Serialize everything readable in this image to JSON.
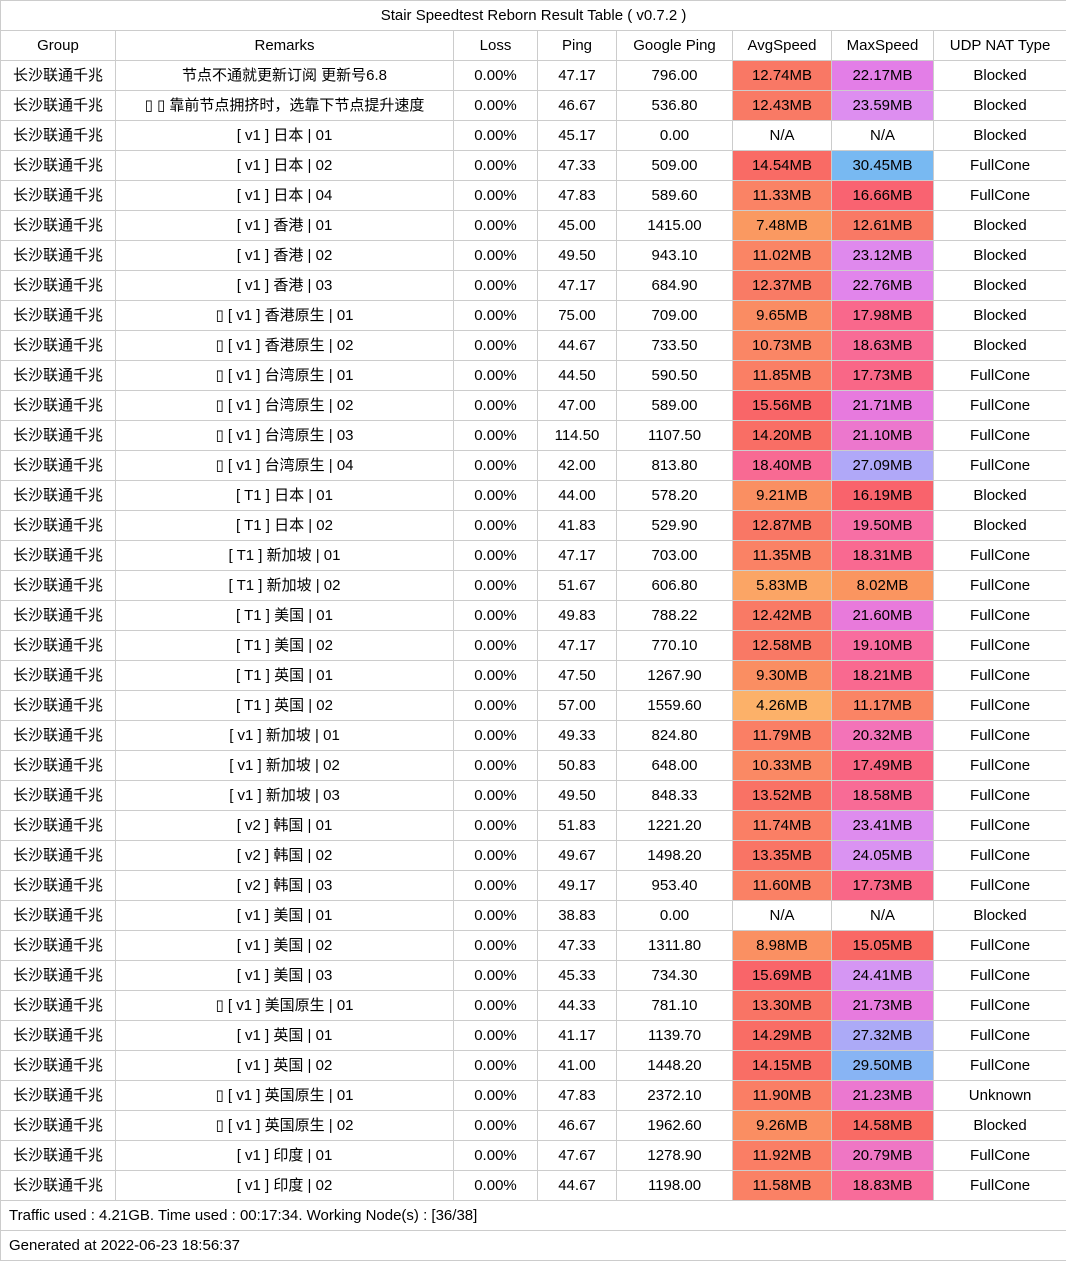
{
  "title": "Stair Speedtest Reborn Result Table ( v0.7.2 )",
  "columns": [
    "Group",
    "Remarks",
    "Loss",
    "Ping",
    "Google Ping",
    "AvgSpeed",
    "MaxSpeed",
    "UDP NAT Type"
  ],
  "column_keys": [
    "group",
    "remarks",
    "loss",
    "ping",
    "google_ping",
    "avg_speed",
    "max_speed",
    "udp_nat_type"
  ],
  "footer": {
    "summary": "Traffic used : 4.21GB. Time used : 00:17:34. Working Node(s) : [36/38]",
    "generated": "Generated at 2022-06-23 18:56:37"
  },
  "colors": {
    "border": "#cccccc",
    "text": "#000000",
    "background": "#ffffff",
    "na_cell": "#ffffff",
    "speed_scale": [
      {
        "mb": 4.0,
        "color": "#FCB36A"
      },
      {
        "mb": 8.0,
        "color": "#FA9560"
      },
      {
        "mb": 11.0,
        "color": "#FA8565"
      },
      {
        "mb": 13.0,
        "color": "#F97665"
      },
      {
        "mb": 15.0,
        "color": "#F96865"
      },
      {
        "mb": 16.5,
        "color": "#F9626E"
      },
      {
        "mb": 18.0,
        "color": "#F9688C"
      },
      {
        "mb": 19.5,
        "color": "#F76FA5"
      },
      {
        "mb": 20.5,
        "color": "#F274BC"
      },
      {
        "mb": 22.0,
        "color": "#E47CE6"
      },
      {
        "mb": 24.0,
        "color": "#DB93F2"
      },
      {
        "mb": 27.0,
        "color": "#B1A8F8"
      },
      {
        "mb": 30.5,
        "color": "#77B9F2"
      }
    ]
  },
  "rows": [
    {
      "group": "长沙联通千兆",
      "remarks": "节点不通就更新订阅 更新号6.8",
      "loss": "0.00%",
      "ping": "47.17",
      "google_ping": "796.00",
      "avg_speed": "12.74MB",
      "max_speed": "22.17MB",
      "udp_nat_type": "Blocked",
      "avg_mb": 12.74,
      "max_mb": 22.17
    },
    {
      "group": "长沙联通千兆",
      "remarks": "▯ ▯ 靠前节点拥挤时，选靠下节点提升速度",
      "loss": "0.00%",
      "ping": "46.67",
      "google_ping": "536.80",
      "avg_speed": "12.43MB",
      "max_speed": "23.59MB",
      "udp_nat_type": "Blocked",
      "avg_mb": 12.43,
      "max_mb": 23.59
    },
    {
      "group": "长沙联通千兆",
      "remarks": "[ v1 ] 日本 | 01",
      "loss": "0.00%",
      "ping": "45.17",
      "google_ping": "0.00",
      "avg_speed": "N/A",
      "max_speed": "N/A",
      "udp_nat_type": "Blocked",
      "avg_mb": null,
      "max_mb": null
    },
    {
      "group": "长沙联通千兆",
      "remarks": "[ v1 ] 日本 | 02",
      "loss": "0.00%",
      "ping": "47.33",
      "google_ping": "509.00",
      "avg_speed": "14.54MB",
      "max_speed": "30.45MB",
      "udp_nat_type": "FullCone",
      "avg_mb": 14.54,
      "max_mb": 30.45
    },
    {
      "group": "长沙联通千兆",
      "remarks": "[ v1 ] 日本 | 04",
      "loss": "0.00%",
      "ping": "47.83",
      "google_ping": "589.60",
      "avg_speed": "11.33MB",
      "max_speed": "16.66MB",
      "udp_nat_type": "FullCone",
      "avg_mb": 11.33,
      "max_mb": 16.66
    },
    {
      "group": "长沙联通千兆",
      "remarks": "[ v1 ] 香港 | 01",
      "loss": "0.00%",
      "ping": "45.00",
      "google_ping": "1415.00",
      "avg_speed": "7.48MB",
      "max_speed": "12.61MB",
      "udp_nat_type": "Blocked",
      "avg_mb": 7.48,
      "max_mb": 12.61
    },
    {
      "group": "长沙联通千兆",
      "remarks": "[ v1 ] 香港 | 02",
      "loss": "0.00%",
      "ping": "49.50",
      "google_ping": "943.10",
      "avg_speed": "11.02MB",
      "max_speed": "23.12MB",
      "udp_nat_type": "Blocked",
      "avg_mb": 11.02,
      "max_mb": 23.12
    },
    {
      "group": "长沙联通千兆",
      "remarks": "[ v1 ] 香港 | 03",
      "loss": "0.00%",
      "ping": "47.17",
      "google_ping": "684.90",
      "avg_speed": "12.37MB",
      "max_speed": "22.76MB",
      "udp_nat_type": "Blocked",
      "avg_mb": 12.37,
      "max_mb": 22.76
    },
    {
      "group": "长沙联通千兆",
      "remarks": "▯ [ v1 ] 香港原生 | 01",
      "loss": "0.00%",
      "ping": "75.00",
      "google_ping": "709.00",
      "avg_speed": "9.65MB",
      "max_speed": "17.98MB",
      "udp_nat_type": "Blocked",
      "avg_mb": 9.65,
      "max_mb": 17.98
    },
    {
      "group": "长沙联通千兆",
      "remarks": "▯ [ v1 ] 香港原生 | 02",
      "loss": "0.00%",
      "ping": "44.67",
      "google_ping": "733.50",
      "avg_speed": "10.73MB",
      "max_speed": "18.63MB",
      "udp_nat_type": "Blocked",
      "avg_mb": 10.73,
      "max_mb": 18.63
    },
    {
      "group": "长沙联通千兆",
      "remarks": "▯ [ v1 ] 台湾原生 | 01",
      "loss": "0.00%",
      "ping": "44.50",
      "google_ping": "590.50",
      "avg_speed": "11.85MB",
      "max_speed": "17.73MB",
      "udp_nat_type": "FullCone",
      "avg_mb": 11.85,
      "max_mb": 17.73
    },
    {
      "group": "长沙联通千兆",
      "remarks": "▯ [ v1 ] 台湾原生 | 02",
      "loss": "0.00%",
      "ping": "47.00",
      "google_ping": "589.00",
      "avg_speed": "15.56MB",
      "max_speed": "21.71MB",
      "udp_nat_type": "FullCone",
      "avg_mb": 15.56,
      "max_mb": 21.71
    },
    {
      "group": "长沙联通千兆",
      "remarks": "▯ [ v1 ] 台湾原生 | 03",
      "loss": "0.00%",
      "ping": "114.50",
      "google_ping": "1107.50",
      "avg_speed": "14.20MB",
      "max_speed": "21.10MB",
      "udp_nat_type": "FullCone",
      "avg_mb": 14.2,
      "max_mb": 21.1
    },
    {
      "group": "长沙联通千兆",
      "remarks": "▯ [ v1 ] 台湾原生 | 04",
      "loss": "0.00%",
      "ping": "42.00",
      "google_ping": "813.80",
      "avg_speed": "18.40MB",
      "max_speed": "27.09MB",
      "udp_nat_type": "FullCone",
      "avg_mb": 18.4,
      "max_mb": 27.09
    },
    {
      "group": "长沙联通千兆",
      "remarks": "[ T1 ] 日本 | 01",
      "loss": "0.00%",
      "ping": "44.00",
      "google_ping": "578.20",
      "avg_speed": "9.21MB",
      "max_speed": "16.19MB",
      "udp_nat_type": "Blocked",
      "avg_mb": 9.21,
      "max_mb": 16.19
    },
    {
      "group": "长沙联通千兆",
      "remarks": "[ T1 ] 日本 | 02",
      "loss": "0.00%",
      "ping": "41.83",
      "google_ping": "529.90",
      "avg_speed": "12.87MB",
      "max_speed": "19.50MB",
      "udp_nat_type": "Blocked",
      "avg_mb": 12.87,
      "max_mb": 19.5
    },
    {
      "group": "长沙联通千兆",
      "remarks": "[ T1 ] 新加坡 | 01",
      "loss": "0.00%",
      "ping": "47.17",
      "google_ping": "703.00",
      "avg_speed": "11.35MB",
      "max_speed": "18.31MB",
      "udp_nat_type": "FullCone",
      "avg_mb": 11.35,
      "max_mb": 18.31
    },
    {
      "group": "长沙联通千兆",
      "remarks": "[ T1 ] 新加坡 | 02",
      "loss": "0.00%",
      "ping": "51.67",
      "google_ping": "606.80",
      "avg_speed": "5.83MB",
      "max_speed": "8.02MB",
      "udp_nat_type": "FullCone",
      "avg_mb": 5.83,
      "max_mb": 8.02
    },
    {
      "group": "长沙联通千兆",
      "remarks": "[ T1 ] 美国 | 01",
      "loss": "0.00%",
      "ping": "49.83",
      "google_ping": "788.22",
      "avg_speed": "12.42MB",
      "max_speed": "21.60MB",
      "udp_nat_type": "FullCone",
      "avg_mb": 12.42,
      "max_mb": 21.6
    },
    {
      "group": "长沙联通千兆",
      "remarks": "[ T1 ] 美国 | 02",
      "loss": "0.00%",
      "ping": "47.17",
      "google_ping": "770.10",
      "avg_speed": "12.58MB",
      "max_speed": "19.10MB",
      "udp_nat_type": "FullCone",
      "avg_mb": 12.58,
      "max_mb": 19.1
    },
    {
      "group": "长沙联通千兆",
      "remarks": "[ T1 ] 英国 | 01",
      "loss": "0.00%",
      "ping": "47.50",
      "google_ping": "1267.90",
      "avg_speed": "9.30MB",
      "max_speed": "18.21MB",
      "udp_nat_type": "FullCone",
      "avg_mb": 9.3,
      "max_mb": 18.21
    },
    {
      "group": "长沙联通千兆",
      "remarks": "[ T1 ] 英国 | 02",
      "loss": "0.00%",
      "ping": "57.00",
      "google_ping": "1559.60",
      "avg_speed": "4.26MB",
      "max_speed": "11.17MB",
      "udp_nat_type": "FullCone",
      "avg_mb": 4.26,
      "max_mb": 11.17
    },
    {
      "group": "长沙联通千兆",
      "remarks": "[ v1 ] 新加坡 | 01",
      "loss": "0.00%",
      "ping": "49.33",
      "google_ping": "824.80",
      "avg_speed": "11.79MB",
      "max_speed": "20.32MB",
      "udp_nat_type": "FullCone",
      "avg_mb": 11.79,
      "max_mb": 20.32
    },
    {
      "group": "长沙联通千兆",
      "remarks": "[ v1 ] 新加坡 | 02",
      "loss": "0.00%",
      "ping": "50.83",
      "google_ping": "648.00",
      "avg_speed": "10.33MB",
      "max_speed": "17.49MB",
      "udp_nat_type": "FullCone",
      "avg_mb": 10.33,
      "max_mb": 17.49
    },
    {
      "group": "长沙联通千兆",
      "remarks": "[ v1 ] 新加坡 | 03",
      "loss": "0.00%",
      "ping": "49.50",
      "google_ping": "848.33",
      "avg_speed": "13.52MB",
      "max_speed": "18.58MB",
      "udp_nat_type": "FullCone",
      "avg_mb": 13.52,
      "max_mb": 18.58
    },
    {
      "group": "长沙联通千兆",
      "remarks": "[ v2 ] 韩国 | 01",
      "loss": "0.00%",
      "ping": "51.83",
      "google_ping": "1221.20",
      "avg_speed": "11.74MB",
      "max_speed": "23.41MB",
      "udp_nat_type": "FullCone",
      "avg_mb": 11.74,
      "max_mb": 23.41
    },
    {
      "group": "长沙联通千兆",
      "remarks": "[ v2 ] 韩国 | 02",
      "loss": "0.00%",
      "ping": "49.67",
      "google_ping": "1498.20",
      "avg_speed": "13.35MB",
      "max_speed": "24.05MB",
      "udp_nat_type": "FullCone",
      "avg_mb": 13.35,
      "max_mb": 24.05
    },
    {
      "group": "长沙联通千兆",
      "remarks": "[ v2 ] 韩国 | 03",
      "loss": "0.00%",
      "ping": "49.17",
      "google_ping": "953.40",
      "avg_speed": "11.60MB",
      "max_speed": "17.73MB",
      "udp_nat_type": "FullCone",
      "avg_mb": 11.6,
      "max_mb": 17.73
    },
    {
      "group": "长沙联通千兆",
      "remarks": "[ v1 ] 美国 | 01",
      "loss": "0.00%",
      "ping": "38.83",
      "google_ping": "0.00",
      "avg_speed": "N/A",
      "max_speed": "N/A",
      "udp_nat_type": "Blocked",
      "avg_mb": null,
      "max_mb": null
    },
    {
      "group": "长沙联通千兆",
      "remarks": "[ v1 ] 美国 | 02",
      "loss": "0.00%",
      "ping": "47.33",
      "google_ping": "1311.80",
      "avg_speed": "8.98MB",
      "max_speed": "15.05MB",
      "udp_nat_type": "FullCone",
      "avg_mb": 8.98,
      "max_mb": 15.05
    },
    {
      "group": "长沙联通千兆",
      "remarks": "[ v1 ] 美国 | 03",
      "loss": "0.00%",
      "ping": "45.33",
      "google_ping": "734.30",
      "avg_speed": "15.69MB",
      "max_speed": "24.41MB",
      "udp_nat_type": "FullCone",
      "avg_mb": 15.69,
      "max_mb": 24.41
    },
    {
      "group": "长沙联通千兆",
      "remarks": "▯ [ v1 ] 美国原生 | 01",
      "loss": "0.00%",
      "ping": "44.33",
      "google_ping": "781.10",
      "avg_speed": "13.30MB",
      "max_speed": "21.73MB",
      "udp_nat_type": "FullCone",
      "avg_mb": 13.3,
      "max_mb": 21.73
    },
    {
      "group": "长沙联通千兆",
      "remarks": "[ v1 ] 英国 | 01",
      "loss": "0.00%",
      "ping": "41.17",
      "google_ping": "1139.70",
      "avg_speed": "14.29MB",
      "max_speed": "27.32MB",
      "udp_nat_type": "FullCone",
      "avg_mb": 14.29,
      "max_mb": 27.32
    },
    {
      "group": "长沙联通千兆",
      "remarks": "[ v1 ] 英国 | 02",
      "loss": "0.00%",
      "ping": "41.00",
      "google_ping": "1448.20",
      "avg_speed": "14.15MB",
      "max_speed": "29.50MB",
      "udp_nat_type": "FullCone",
      "avg_mb": 14.15,
      "max_mb": 29.5
    },
    {
      "group": "长沙联通千兆",
      "remarks": "▯ [ v1 ] 英国原生 | 01",
      "loss": "0.00%",
      "ping": "47.83",
      "google_ping": "2372.10",
      "avg_speed": "11.90MB",
      "max_speed": "21.23MB",
      "udp_nat_type": "Unknown",
      "avg_mb": 11.9,
      "max_mb": 21.23
    },
    {
      "group": "长沙联通千兆",
      "remarks": "▯ [ v1 ] 英国原生 | 02",
      "loss": "0.00%",
      "ping": "46.67",
      "google_ping": "1962.60",
      "avg_speed": "9.26MB",
      "max_speed": "14.58MB",
      "udp_nat_type": "Blocked",
      "avg_mb": 9.26,
      "max_mb": 14.58
    },
    {
      "group": "长沙联通千兆",
      "remarks": "[ v1 ] 印度 | 01",
      "loss": "0.00%",
      "ping": "47.67",
      "google_ping": "1278.90",
      "avg_speed": "11.92MB",
      "max_speed": "20.79MB",
      "udp_nat_type": "FullCone",
      "avg_mb": 11.92,
      "max_mb": 20.79
    },
    {
      "group": "长沙联通千兆",
      "remarks": "[ v1 ] 印度 | 02",
      "loss": "0.00%",
      "ping": "44.67",
      "google_ping": "1198.00",
      "avg_speed": "11.58MB",
      "max_speed": "18.83MB",
      "udp_nat_type": "FullCone",
      "avg_mb": 11.58,
      "max_mb": 18.83
    }
  ]
}
